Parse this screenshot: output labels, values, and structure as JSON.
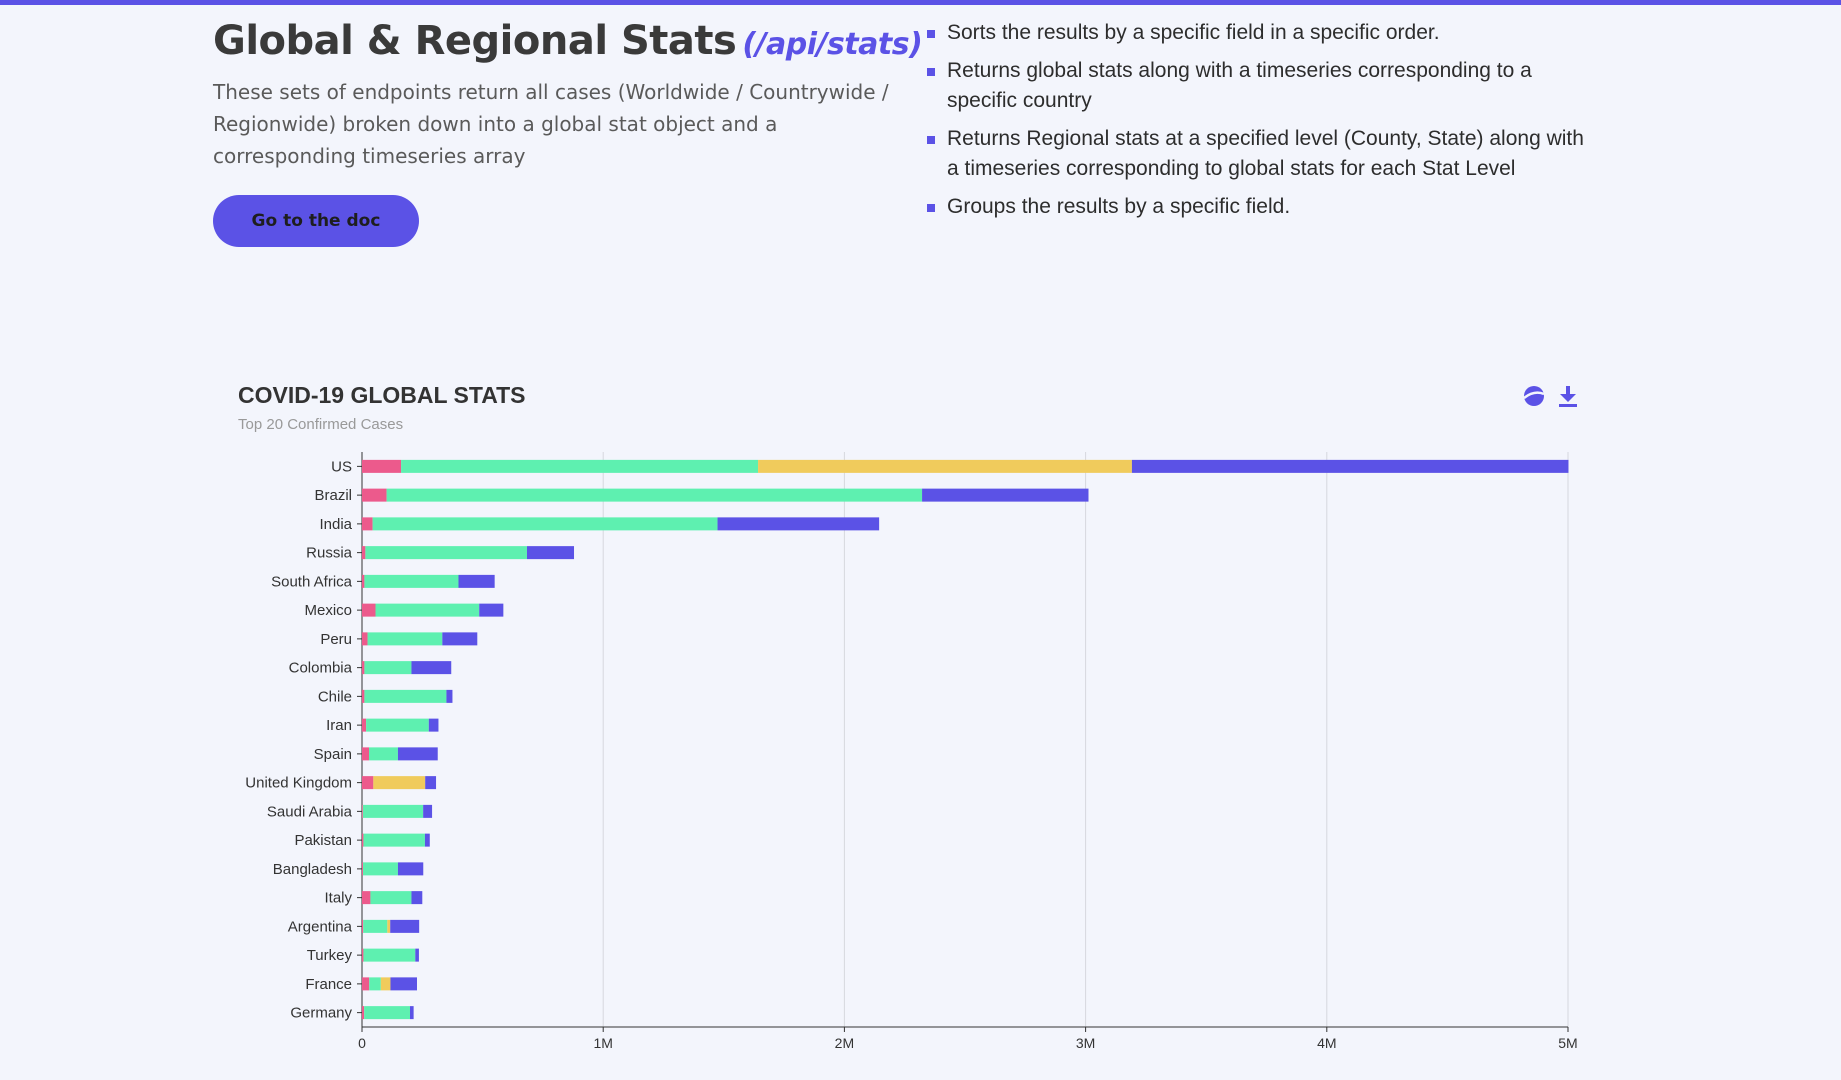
{
  "header": {
    "title": "Global & Regional Stats",
    "api_path": "(/api/stats)",
    "description": "These sets of endpoints return all cases (Worldwide / Countrywide / Regionwide) broken down into a global stat object and a corresponding timeseries array",
    "doc_button_label": "Go to the doc"
  },
  "features": [
    "Sorts the results by a specific field in a specific order.",
    "Returns global stats along with a timeseries corresponding to a specific country",
    "Returns Regional stats at a specified level (County, State) along with a timeseries corresponding to global stats for each Stat Level",
    "Groups the results by a specific field."
  ],
  "chart_toolbar": {
    "icons": [
      "restore-icon",
      "download-icon"
    ]
  },
  "colors": {
    "accent": "#5b52e6",
    "deaths": "#ec5a8c",
    "recovered": "#5ef0b0",
    "unknown": "#f0cb5c",
    "active": "#5b52e6"
  },
  "chart_data": {
    "type": "bar",
    "orientation": "horizontal",
    "stacked": true,
    "title": "COVID-19 GLOBAL STATS",
    "subtitle": "Top 20 Confirmed Cases",
    "xlabel": "",
    "ylabel": "",
    "xlim": [
      0,
      5000000
    ],
    "x_ticks": [
      "0",
      "1M",
      "2M",
      "3M",
      "4M",
      "5M"
    ],
    "grid": true,
    "categories": [
      "US",
      "Brazil",
      "India",
      "Russia",
      "South Africa",
      "Mexico",
      "Peru",
      "Colombia",
      "Chile",
      "Iran",
      "Spain",
      "United Kingdom",
      "Saudi Arabia",
      "Pakistan",
      "Bangladesh",
      "Italy",
      "Argentina",
      "Turkey",
      "France",
      "Germany"
    ],
    "series": [
      {
        "color": "#ec5a8c",
        "values": [
          162000,
          102000,
          44000,
          14000,
          10000,
          56000,
          23000,
          10000,
          10000,
          17000,
          29000,
          47000,
          3500,
          6000,
          4000,
          35000,
          5000,
          6000,
          30000,
          9000
        ]
      },
      {
        "color": "#5ef0b0",
        "values": [
          1480000,
          2220000,
          1430000,
          670000,
          390000,
          430000,
          310000,
          195000,
          340000,
          260000,
          120000,
          0,
          250000,
          255000,
          145000,
          170000,
          100000,
          215000,
          48000,
          190000
        ]
      },
      {
        "color": "#f0cb5c",
        "values": [
          1550000,
          0,
          0,
          0,
          0,
          0,
          0,
          0,
          0,
          0,
          0,
          215000,
          0,
          0,
          0,
          0,
          12000,
          0,
          40000,
          0
        ]
      },
      {
        "color": "#5b52e6",
        "values": [
          1810000,
          690000,
          670000,
          195000,
          150000,
          100000,
          145000,
          165000,
          25000,
          40000,
          165000,
          45000,
          37000,
          20000,
          105000,
          45000,
          120000,
          15000,
          110000,
          15000
        ]
      }
    ]
  }
}
